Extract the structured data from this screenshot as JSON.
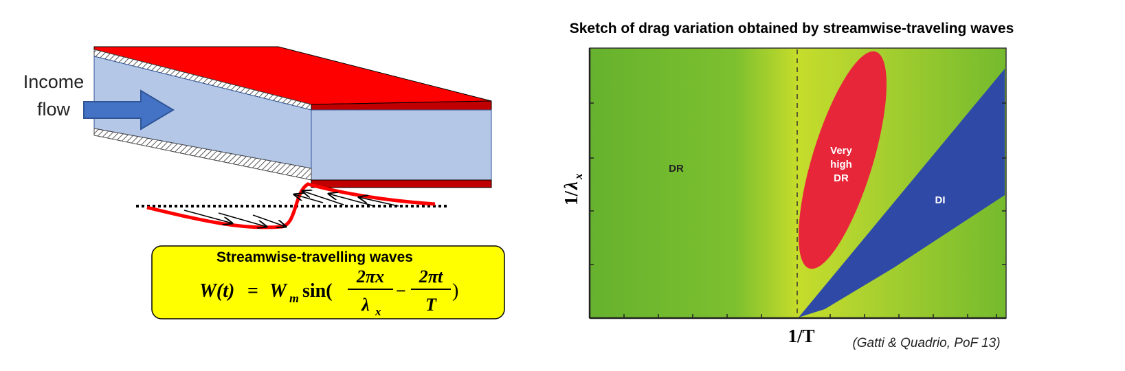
{
  "left_diagram": {
    "inlet_label_line1": "Income",
    "inlet_label_line2": "flow",
    "wave_box": {
      "title": "Streamwise-travelling waves",
      "eq_lhs": "W(t)",
      "eq_equals": "=",
      "eq_amp": "W",
      "eq_amp_sub": "m",
      "eq_func": "sin(",
      "frac1_num": "2πx",
      "frac1_den": "λ",
      "frac1_den_sub": "x",
      "eq_minus": "−",
      "frac2_num": "2πt",
      "frac2_den": "T",
      "eq_close": ")"
    },
    "colors": {
      "wall_top": "#ff0000",
      "wall_edge": "#c00000",
      "fluid": "#b4c7e7",
      "arrow": "#4472c4",
      "wave": "#ff0000",
      "box": "#ffff00"
    }
  },
  "chart": {
    "title": "Sketch of drag variation obtained by streamwise-traveling waves",
    "y_axis_label": "1/",
    "y_axis_symbol": "λ",
    "y_axis_sub": "x",
    "x_axis_label": "1/T",
    "citation": "(Gatti & Quadrio, PoF  13)",
    "regions": {
      "dr": "DR",
      "very_high_dr_line1": "Very",
      "very_high_dr_line2": "high",
      "very_high_dr_line3": "DR",
      "di": "DI"
    },
    "colors": {
      "background_left": "#6ab82e",
      "background_mid": "#c4dc2c",
      "very_high_dr": "#e8263a",
      "di": "#2f4aa6"
    }
  }
}
